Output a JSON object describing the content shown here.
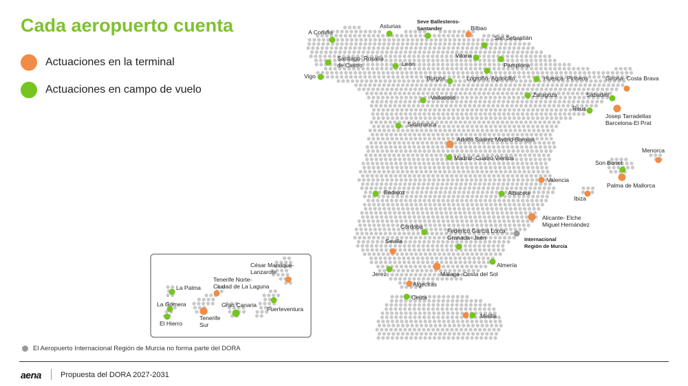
{
  "title": "Cada aeropuerto cuenta",
  "colors": {
    "terminal": "#f08c45",
    "campo": "#76c51e",
    "excluded": "#9a9a9a",
    "hex": "#c8c8c8",
    "title": "#7dc22b"
  },
  "legend": [
    {
      "label": "Actuaciones en la terminal",
      "color": "#f08c45"
    },
    {
      "label": "Actuaciones en campo de vuelo",
      "color": "#76c51e"
    }
  ],
  "airports": [
    {
      "label": "A Coruña",
      "lines": [
        "A Coruña"
      ],
      "type": "campo"
    },
    {
      "label": "Asturias",
      "lines": [
        "Asturias"
      ],
      "type": "campo"
    },
    {
      "label": "Seve Ballesteros-Santander",
      "lines": [
        "Seve Ballesteros-",
        "Santander"
      ],
      "type": "campo"
    },
    {
      "label": "Bilbao",
      "lines": [
        "Bilbao"
      ],
      "type": "terminal"
    },
    {
      "label": "San Sebastián",
      "lines": [
        "San Sebastián"
      ],
      "type": "campo"
    },
    {
      "label": "Santiago-Rosalía de Castro",
      "lines": [
        "Santiago- Rosalía",
        "de Castro"
      ],
      "type": "campo"
    },
    {
      "label": "León",
      "lines": [
        "León"
      ],
      "type": "campo"
    },
    {
      "label": "Vitoria",
      "lines": [
        "Vitoria"
      ],
      "type": "campo"
    },
    {
      "label": "Pamplona",
      "lines": [
        "Pamplona"
      ],
      "type": "campo"
    },
    {
      "label": "Vigo",
      "lines": [
        "Vigo"
      ],
      "type": "campo"
    },
    {
      "label": "Burgos",
      "lines": [
        "Burgos"
      ],
      "type": "campo"
    },
    {
      "label": "Logroño-Agoncillo",
      "lines": [
        "Logroño- Agoncillo"
      ],
      "type": "campo"
    },
    {
      "label": "Huesca-Pirineos",
      "lines": [
        "Huesca- Pirineos"
      ],
      "type": "campo"
    },
    {
      "label": "Girona-Costa Brava",
      "lines": [
        "Girona- Costa Brava"
      ],
      "type": "terminal"
    },
    {
      "label": "Zaragoza",
      "lines": [
        "Zaragoza"
      ],
      "type": "campo"
    },
    {
      "label": "Sabadell",
      "lines": [
        "Sabadell"
      ],
      "type": "campo"
    },
    {
      "label": "Valladolid",
      "lines": [
        "Valladolid"
      ],
      "type": "campo"
    },
    {
      "label": "Reus",
      "lines": [
        "Reus"
      ],
      "type": "campo"
    },
    {
      "label": "Josep Tarradellas Barcelona-El Prat",
      "lines": [
        "Josep Tarradellas",
        "Barcelona-El Prat"
      ],
      "type": "terminal"
    },
    {
      "label": "Salamanca",
      "lines": [
        "Salamanca"
      ],
      "type": "campo"
    },
    {
      "label": "Adolfo Suárez Madrid-Barajas",
      "lines": [
        "Adolfo Suárez Madrid-Barajas"
      ],
      "type": "terminal"
    },
    {
      "label": "Madrid-Cuatro Vientos",
      "lines": [
        "Madrid- Cuatro Vientos"
      ],
      "type": "campo"
    },
    {
      "label": "Menorca",
      "lines": [
        "Menorca"
      ],
      "type": "terminal"
    },
    {
      "label": "Son Bonet",
      "lines": [
        "Son Bonet"
      ],
      "type": "campo"
    },
    {
      "label": "Palma de Mallorca",
      "lines": [
        "Palma de Mallorca"
      ],
      "type": "terminal"
    },
    {
      "label": "Valencia",
      "lines": [
        "Valencia"
      ],
      "type": "terminal"
    },
    {
      "label": "Ibiza",
      "lines": [
        "Ibiza"
      ],
      "type": "terminal"
    },
    {
      "label": "Badajoz",
      "lines": [
        "Badajoz"
      ],
      "type": "campo"
    },
    {
      "label": "Albacete",
      "lines": [
        "Albacete"
      ],
      "type": "campo"
    },
    {
      "label": "Alicante-Elche Miguel Hernández",
      "lines": [
        "Alicante- Elche",
        "Miguel Hernández"
      ],
      "type": "terminal"
    },
    {
      "label": "Córdoba",
      "lines": [
        "Córdoba"
      ],
      "type": "campo"
    },
    {
      "label": "Federico García Lorca Granada-Jaén",
      "lines": [
        "Federico García Lorca",
        "Granada- Jaén"
      ],
      "type": "campo"
    },
    {
      "label": "Internacional Región de Murcia",
      "lines": [
        "Internacional",
        "Región de Murcia"
      ],
      "type": "excluded"
    },
    {
      "label": "Sevilla",
      "lines": [
        "Sevilla"
      ],
      "type": "terminal"
    },
    {
      "label": "Almería",
      "lines": [
        "Almería"
      ],
      "type": "campo"
    },
    {
      "label": "Jerez",
      "lines": [
        "Jerez"
      ],
      "type": "campo"
    },
    {
      "label": "Málaga-Costa del Sol",
      "lines": [
        "Málaga- Costa del Sol"
      ],
      "type": "terminal"
    },
    {
      "label": "Algeciras",
      "lines": [
        "Algeciras"
      ],
      "type": "terminal"
    },
    {
      "label": "Ceuta",
      "lines": [
        "Ceuta"
      ],
      "type": "campo"
    },
    {
      "label": "Melilla",
      "lines": [
        "Melilla"
      ],
      "type": "campo"
    },
    {
      "label": "César Manrique-Lanzarote",
      "lines": [
        "César Manrique-",
        "Lanzarote"
      ],
      "type": "terminal"
    },
    {
      "label": "La Palma",
      "lines": [
        "La Palma"
      ],
      "type": "campo"
    },
    {
      "label": "Tenerife Norte-Ciudad de La Laguna",
      "lines": [
        "Tenerife Norte-",
        "Ciudad de La Laguna"
      ],
      "type": "terminal"
    },
    {
      "label": "La Gomera",
      "lines": [
        "La Gomera"
      ],
      "type": "campo"
    },
    {
      "label": "Gran Canaria",
      "lines": [
        "Gran Canaria"
      ],
      "type": "campo"
    },
    {
      "label": "Fuerteventura",
      "lines": [
        "Fuerteventura"
      ],
      "type": "campo"
    },
    {
      "label": "El Hierro",
      "lines": [
        "El Hierro"
      ],
      "type": "campo"
    },
    {
      "label": "Tenerife Sur",
      "lines": [
        "Tenerife",
        "Sur"
      ],
      "type": "terminal"
    }
  ],
  "note": "El Aeropuerto Internacional Región de Murcia no forma parte del DORA",
  "footer": {
    "brand": "aena",
    "text": "Propuesta del DORA 2027-2031"
  }
}
